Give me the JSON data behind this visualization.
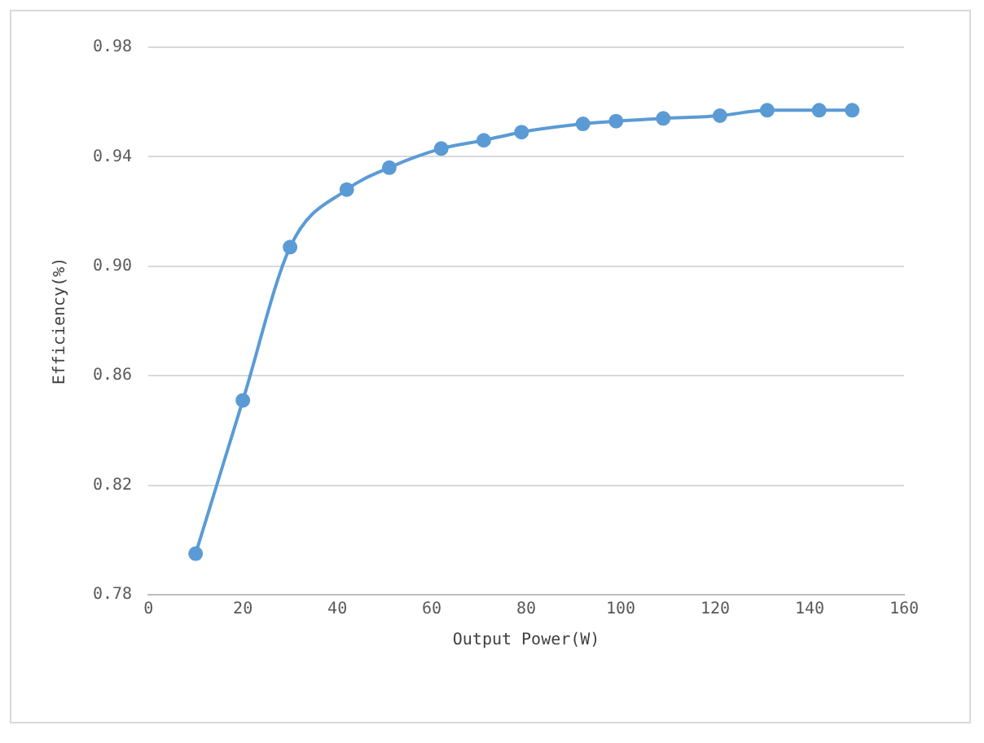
{
  "chart_data": {
    "type": "line",
    "xlabel": "Output Power(W)",
    "ylabel": "Efficiency(%)",
    "x": [
      10,
      20,
      30,
      42,
      51,
      62,
      71,
      79,
      92,
      99,
      109,
      121,
      131,
      142,
      149
    ],
    "series": [
      {
        "color": "#5b9bd5",
        "values": [
          0.795,
          0.851,
          0.907,
          0.928,
          0.936,
          0.943,
          0.946,
          0.949,
          0.952,
          0.953,
          0.954,
          0.955,
          0.957,
          0.957,
          0.957
        ]
      }
    ],
    "xlim": [
      0,
      160
    ],
    "xticks": [
      0,
      20,
      40,
      60,
      80,
      100,
      120,
      140,
      160
    ],
    "ylim": [
      0.78,
      0.98
    ],
    "yticks": [
      {
        "value": 0.78,
        "label": "0.78"
      },
      {
        "value": 0.82,
        "label": "0.82"
      },
      {
        "value": 0.86,
        "label": "0.86"
      },
      {
        "value": 0.9,
        "label": "0.90"
      },
      {
        "value": 0.94,
        "label": "0.94"
      },
      {
        "value": 0.98,
        "label": "0.98"
      }
    ],
    "grid": "y",
    "legend": false,
    "marker": "circle",
    "line_style": "solid"
  }
}
